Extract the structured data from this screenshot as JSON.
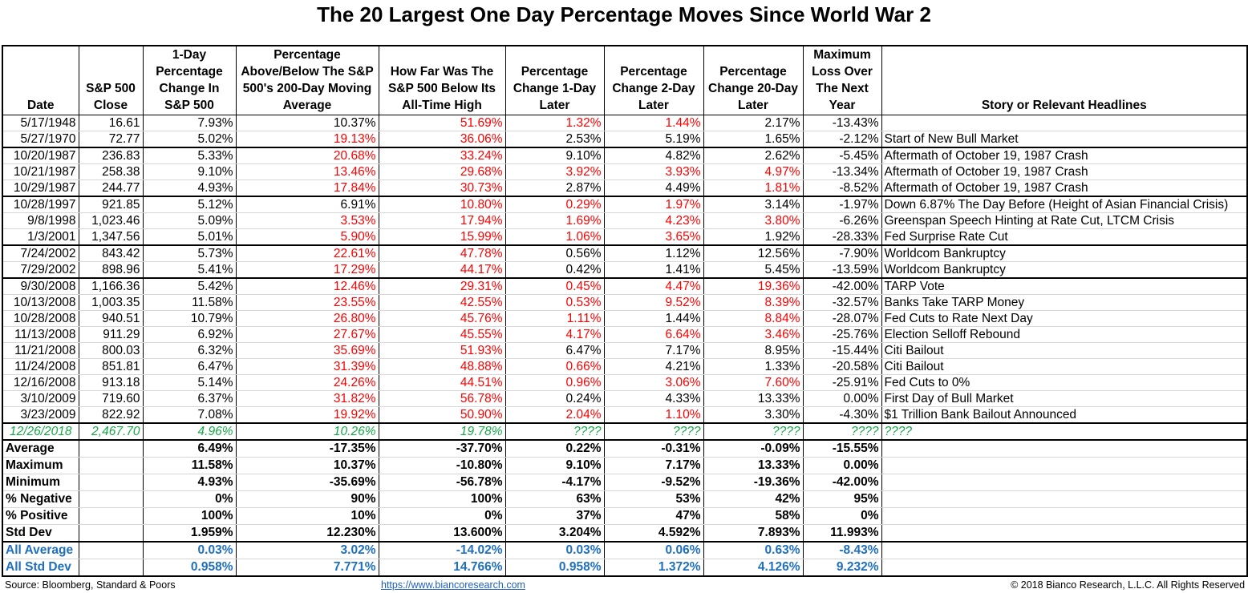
{
  "title": "The 20 Largest One Day Percentage Moves Since World War 2",
  "headers": {
    "date": "Date",
    "close": "S&P 500 Close",
    "change": "1-Day Percentage Change In S&P 500",
    "ma200": "Percentage Above/Below The S&P 500's 200-Day Moving Average",
    "ath": "How Far Was The S&P 500 Below Its All-Time High",
    "d1": "Percentage Change 1-Day Later",
    "d2": "Percentage Change 2-Day Later",
    "d20": "Percentage Change 20-Day Later",
    "maxloss": "Maximum Loss Over The Next Year",
    "story": "Story or Relevant Headlines"
  },
  "rows": [
    {
      "date": "5/17/1948",
      "close": "16.61",
      "change": "7.93%",
      "ma200": "10.37%",
      "ath": "51.69%",
      "d1": "1.32%",
      "d2": "1.44%",
      "d20": "2.17%",
      "maxloss": "-13.43%",
      "story": ""
    },
    {
      "date": "5/27/1970",
      "close": "72.77",
      "change": "5.02%",
      "ma200": "19.13%",
      "ath": "36.06%",
      "d1": "2.53%",
      "d2": "5.19%",
      "d20": "1.65%",
      "maxloss": "-2.12%",
      "story": "Start of New Bull Market"
    },
    {
      "date": "10/20/1987",
      "close": "236.83",
      "change": "5.33%",
      "ma200": "20.68%",
      "ath": "33.24%",
      "d1": "9.10%",
      "d2": "4.82%",
      "d20": "2.62%",
      "maxloss": "-5.45%",
      "story": "Aftermath of October 19, 1987 Crash"
    },
    {
      "date": "10/21/1987",
      "close": "258.38",
      "change": "9.10%",
      "ma200": "13.46%",
      "ath": "29.68%",
      "d1": "3.92%",
      "d2": "3.93%",
      "d20": "4.97%",
      "maxloss": "-13.34%",
      "story": "Aftermath of October 19, 1987 Crash"
    },
    {
      "date": "10/29/1987",
      "close": "244.77",
      "change": "4.93%",
      "ma200": "17.84%",
      "ath": "30.73%",
      "d1": "2.87%",
      "d2": "4.49%",
      "d20": "1.81%",
      "maxloss": "-8.52%",
      "story": "Aftermath of October 19, 1987 Crash"
    },
    {
      "date": "10/28/1997",
      "close": "921.85",
      "change": "5.12%",
      "ma200": "6.91%",
      "ath": "10.80%",
      "d1": "0.29%",
      "d2": "1.97%",
      "d20": "3.14%",
      "maxloss": "-1.97%",
      "story": "Down 6.87% The Day Before (Height of Asian Financial Crisis)"
    },
    {
      "date": "9/8/1998",
      "close": "1,023.46",
      "change": "5.09%",
      "ma200": "3.53%",
      "ath": "17.94%",
      "d1": "1.69%",
      "d2": "4.23%",
      "d20": "3.80%",
      "maxloss": "-6.26%",
      "story": "Greenspan Speech Hinting at Rate Cut, LTCM Crisis"
    },
    {
      "date": "1/3/2001",
      "close": "1,347.56",
      "change": "5.01%",
      "ma200": "5.90%",
      "ath": "15.99%",
      "d1": "1.06%",
      "d2": "3.65%",
      "d20": "1.92%",
      "maxloss": "-28.33%",
      "story": "Fed Surprise Rate Cut"
    },
    {
      "date": "7/24/2002",
      "close": "843.42",
      "change": "5.73%",
      "ma200": "22.61%",
      "ath": "47.78%",
      "d1": "0.56%",
      "d2": "1.12%",
      "d20": "12.56%",
      "maxloss": "-7.90%",
      "story": "Worldcom Bankruptcy"
    },
    {
      "date": "7/29/2002",
      "close": "898.96",
      "change": "5.41%",
      "ma200": "17.29%",
      "ath": "44.17%",
      "d1": "0.42%",
      "d2": "1.41%",
      "d20": "5.45%",
      "maxloss": "-13.59%",
      "story": "Worldcom Bankruptcy"
    },
    {
      "date": "9/30/2008",
      "close": "1,166.36",
      "change": "5.42%",
      "ma200": "12.46%",
      "ath": "29.31%",
      "d1": "0.45%",
      "d2": "4.47%",
      "d20": "19.36%",
      "maxloss": "-42.00%",
      "story": "TARP Vote"
    },
    {
      "date": "10/13/2008",
      "close": "1,003.35",
      "change": "11.58%",
      "ma200": "23.55%",
      "ath": "42.55%",
      "d1": "0.53%",
      "d2": "9.52%",
      "d20": "8.39%",
      "maxloss": "-32.57%",
      "story": "Banks Take TARP Money"
    },
    {
      "date": "10/28/2008",
      "close": "940.51",
      "change": "10.79%",
      "ma200": "26.80%",
      "ath": "45.76%",
      "d1": "1.11%",
      "d2": "1.44%",
      "d20": "8.84%",
      "maxloss": "-28.07%",
      "story": "Fed Cuts to Rate Next Day"
    },
    {
      "date": "11/13/2008",
      "close": "911.29",
      "change": "6.92%",
      "ma200": "27.67%",
      "ath": "45.55%",
      "d1": "4.17%",
      "d2": "6.64%",
      "d20": "3.46%",
      "maxloss": "-25.76%",
      "story": "Election Selloff Rebound"
    },
    {
      "date": "11/21/2008",
      "close": "800.03",
      "change": "6.32%",
      "ma200": "35.69%",
      "ath": "51.93%",
      "d1": "6.47%",
      "d2": "7.17%",
      "d20": "8.95%",
      "maxloss": "-15.44%",
      "story": "Citi Bailout"
    },
    {
      "date": "11/24/2008",
      "close": "851.81",
      "change": "6.47%",
      "ma200": "31.39%",
      "ath": "48.88%",
      "d1": "0.66%",
      "d2": "4.21%",
      "d20": "1.33%",
      "maxloss": "-20.58%",
      "story": "Citi Bailout"
    },
    {
      "date": "12/16/2008",
      "close": "913.18",
      "change": "5.14%",
      "ma200": "24.26%",
      "ath": "44.51%",
      "d1": "0.96%",
      "d2": "3.06%",
      "d20": "7.60%",
      "maxloss": "-25.91%",
      "story": "Fed Cuts to 0%"
    },
    {
      "date": "3/10/2009",
      "close": "719.60",
      "change": "6.37%",
      "ma200": "31.82%",
      "ath": "56.78%",
      "d1": "0.24%",
      "d2": "4.33%",
      "d20": "13.33%",
      "maxloss": "0.00%",
      "story": "First Day of Bull Market"
    },
    {
      "date": "3/23/2009",
      "close": "822.92",
      "change": "7.08%",
      "ma200": "19.92%",
      "ath": "50.90%",
      "d1": "2.04%",
      "d2": "1.10%",
      "d20": "3.30%",
      "maxloss": "-4.30%",
      "story": "$1 Trillion Bank Bailout Announced"
    }
  ],
  "red_cells": [
    [
      "ath",
      "d1",
      "d2"
    ],
    [
      "ma200",
      "ath"
    ],
    [
      "ma200",
      "ath"
    ],
    [
      "ma200",
      "ath",
      "d1",
      "d2",
      "d20"
    ],
    [
      "ma200",
      "ath",
      "d20"
    ],
    [
      "ath",
      "d1",
      "d2"
    ],
    [
      "ma200",
      "ath",
      "d1",
      "d2",
      "d20"
    ],
    [
      "ma200",
      "ath",
      "d1",
      "d2"
    ],
    [
      "ma200",
      "ath"
    ],
    [
      "ma200",
      "ath"
    ],
    [
      "ma200",
      "ath",
      "d1",
      "d2",
      "d20"
    ],
    [
      "ma200",
      "ath",
      "d1",
      "d2",
      "d20"
    ],
    [
      "ma200",
      "ath",
      "d1",
      "d20"
    ],
    [
      "ma200",
      "ath",
      "d1",
      "d2",
      "d20"
    ],
    [
      "ma200",
      "ath"
    ],
    [
      "ma200",
      "ath",
      "d1"
    ],
    [
      "ma200",
      "ath",
      "d1",
      "d2",
      "d20"
    ],
    [
      "ma200",
      "ath"
    ],
    [
      "ma200",
      "ath",
      "d1",
      "d2"
    ]
  ],
  "current": {
    "date": "12/26/2018",
    "close": "2,467.70",
    "change": "4.96%",
    "ma200": "10.26%",
    "ath": "19.78%",
    "d1": "????",
    "d2": "????",
    "d20": "????",
    "maxloss": "????",
    "story": "????"
  },
  "stats": [
    {
      "label": "Average",
      "change": "6.49%",
      "ma200": "-17.35%",
      "ath": "-37.70%",
      "d1": "0.22%",
      "d2": "-0.31%",
      "d20": "-0.09%",
      "maxloss": "-15.55%"
    },
    {
      "label": "Maximum",
      "change": "11.58%",
      "ma200": "10.37%",
      "ath": "-10.80%",
      "d1": "9.10%",
      "d2": "7.17%",
      "d20": "13.33%",
      "maxloss": "0.00%"
    },
    {
      "label": "Minimum",
      "change": "4.93%",
      "ma200": "-35.69%",
      "ath": "-56.78%",
      "d1": "-4.17%",
      "d2": "-9.52%",
      "d20": "-19.36%",
      "maxloss": "-42.00%"
    },
    {
      "label": "% Negative",
      "change": "0%",
      "ma200": "90%",
      "ath": "100%",
      "d1": "63%",
      "d2": "53%",
      "d20": "42%",
      "maxloss": "95%"
    },
    {
      "label": "% Positive",
      "change": "100%",
      "ma200": "10%",
      "ath": "0%",
      "d1": "37%",
      "d2": "47%",
      "d20": "58%",
      "maxloss": "0%"
    },
    {
      "label": "Std Dev",
      "change": "1.959%",
      "ma200": "12.230%",
      "ath": "13.600%",
      "d1": "3.204%",
      "d2": "4.592%",
      "d20": "7.893%",
      "maxloss": "11.993%"
    }
  ],
  "all_stats": [
    {
      "label": "All Average",
      "change": "0.03%",
      "ma200": "3.02%",
      "ath": "-14.02%",
      "d1": "0.03%",
      "d2": "0.06%",
      "d20": "0.63%",
      "maxloss": "-8.43%"
    },
    {
      "label": "All Std Dev",
      "change": "0.958%",
      "ma200": "7.771%",
      "ath": "14.766%",
      "d1": "0.958%",
      "d2": "1.372%",
      "d20": "4.126%",
      "maxloss": "9.232%"
    }
  ],
  "footer": {
    "source": "Source: Bloomberg, Standard & Poors",
    "url": "https://www.biancoresearch.com",
    "copyright": "© 2018 Bianco Research, L.L.C. All Rights Reserved"
  },
  "colors": {
    "negative": "#ff0000",
    "current_row": "#1aa84a",
    "all_stats": "#1f6fbf",
    "link": "#1f5fbf"
  }
}
